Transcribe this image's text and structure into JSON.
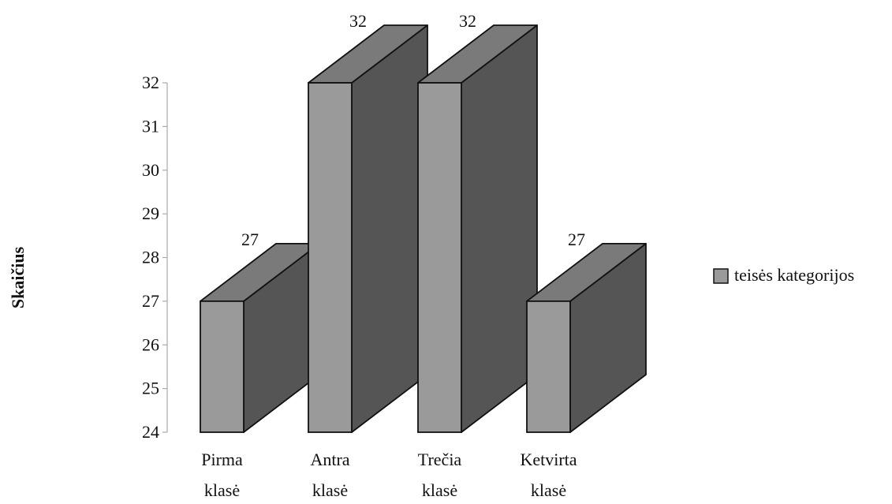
{
  "chart_data": {
    "type": "bar",
    "title": "",
    "xlabel": "",
    "ylabel": "Skaičius",
    "ylim": [
      24,
      32
    ],
    "yticks": [
      24,
      25,
      26,
      27,
      28,
      29,
      30,
      31,
      32
    ],
    "categories": [
      [
        "Pirma",
        "klasė"
      ],
      [
        "Antra",
        "klasė"
      ],
      [
        "Trečia",
        "klasė"
      ],
      [
        "Ketvirta",
        "klasė"
      ]
    ],
    "series": [
      {
        "name": "teisės kategorijos",
        "values": [
          27,
          32,
          32,
          27
        ]
      }
    ],
    "data_labels": true,
    "legend": "right",
    "grid": false,
    "style": "3d-bar",
    "colors": {
      "front": "#9a9a9a",
      "side": "#555555",
      "top": "#7a7a7a",
      "edge": "#111111",
      "axis": "#aaaaaa"
    }
  }
}
